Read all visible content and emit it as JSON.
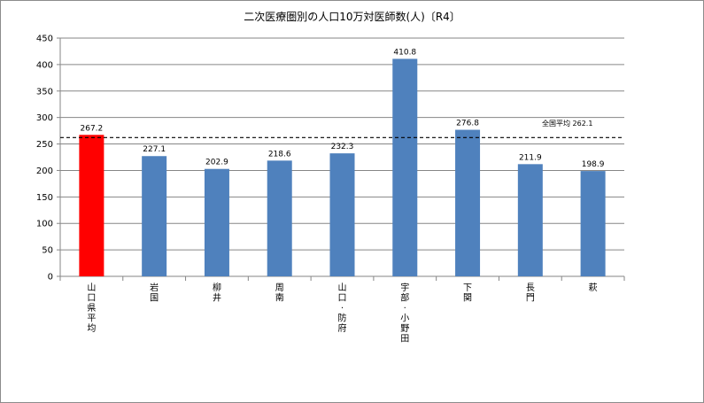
{
  "chart_data": {
    "type": "bar",
    "title": "二次医療圏別の人口10万対医師数(人)〔R4〕",
    "categories": [
      "山口県平均",
      "岩国",
      "柳井",
      "周南",
      "山口・防府",
      "宇部・小野田",
      "下関",
      "長門",
      "萩"
    ],
    "values": [
      267.2,
      227.1,
      202.9,
      218.6,
      232.3,
      410.8,
      276.8,
      211.9,
      198.9
    ],
    "value_labels": [
      "267.2",
      "227.1",
      "202.9",
      "218.6",
      "232.3",
      "410.8",
      "276.8",
      "211.9",
      "198.9"
    ],
    "ylim": [
      0,
      450
    ],
    "yticks": [
      0,
      50,
      100,
      150,
      200,
      250,
      300,
      350,
      400,
      450
    ],
    "grid": true,
    "legend": "none",
    "reference_line": {
      "label": "全国平均",
      "value": 262.1,
      "value_label": "262.1"
    },
    "colors": {
      "highlight": "#ff0000",
      "bar": "#4f81bd",
      "grid": "#868686",
      "axis": "#868686"
    }
  }
}
